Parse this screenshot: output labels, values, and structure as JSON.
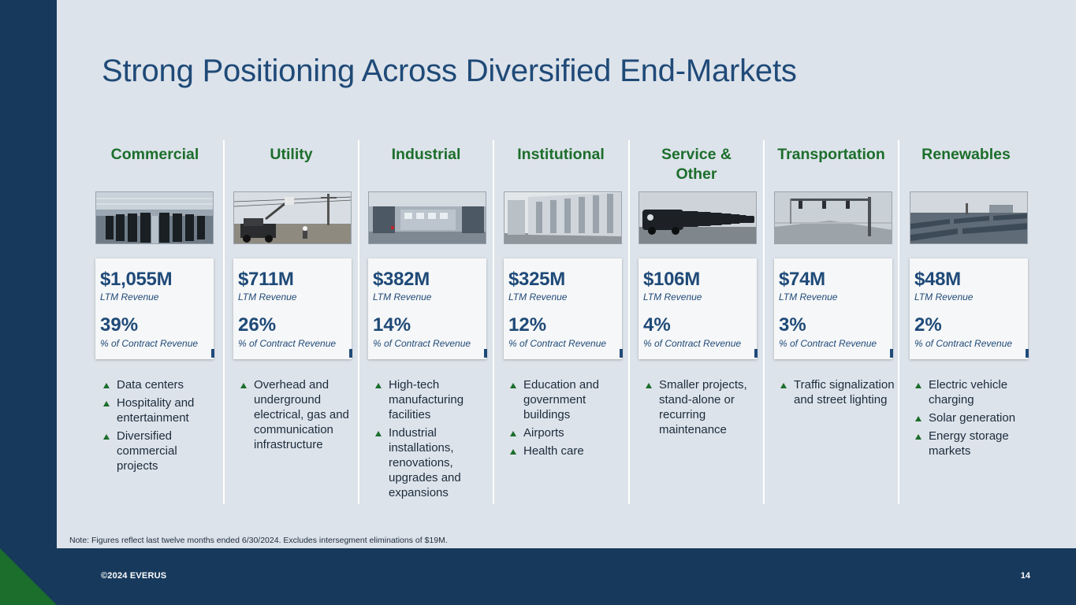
{
  "title": "Strong Positioning Across Diversified End-Markets",
  "note": "Note: Figures reflect last twelve months ended 6/30/2024. Excludes intersegment eliminations of $19M.",
  "footer": {
    "copyright": "©2024 EVERUS",
    "page_number": "14"
  },
  "colors": {
    "navy": "#17395c",
    "title_blue": "#1f4a78",
    "green": "#1c6e2c",
    "background": "#dde3ea"
  },
  "segments": [
    {
      "name": "Commercial",
      "revenue": "$1,055M",
      "revenue_label": "LTM Revenue",
      "percent": "39%",
      "percent_label": "% of Contract Revenue",
      "photo": "data-center-photo",
      "bullets": [
        "Data centers",
        "Hospitality and entertainment",
        "Diversified commercial projects"
      ]
    },
    {
      "name": "Utility",
      "revenue": "$711M",
      "revenue_label": "LTM Revenue",
      "percent": "26%",
      "percent_label": "% of Contract Revenue",
      "photo": "utility-lineworkers-photo",
      "bullets": [
        "Overhead and underground electrical, gas and communication infrastructure"
      ]
    },
    {
      "name": "Industrial",
      "revenue": "$382M",
      "revenue_label": "LTM Revenue",
      "percent": "14%",
      "percent_label": "% of Contract Revenue",
      "photo": "industrial-facility-photo",
      "bullets": [
        "High-tech manufacturing facilities",
        "Industrial installations, renovations, upgrades and expansions"
      ]
    },
    {
      "name": "Institutional",
      "revenue": "$325M",
      "revenue_label": "LTM Revenue",
      "percent": "12%",
      "percent_label": "% of Contract Revenue",
      "photo": "institutional-building-photo",
      "bullets": [
        "Education and government buildings",
        "Airports",
        "Health care"
      ]
    },
    {
      "name": "Service & Other",
      "revenue": "$106M",
      "revenue_label": "LTM Revenue",
      "percent": "4%",
      "percent_label": "% of Contract Revenue",
      "photo": "service-vans-photo",
      "bullets": [
        "Smaller projects, stand-alone or recurring maintenance"
      ]
    },
    {
      "name": "Transportation",
      "revenue": "$74M",
      "revenue_label": "LTM Revenue",
      "percent": "3%",
      "percent_label": "% of Contract Revenue",
      "photo": "traffic-signal-photo",
      "bullets": [
        "Traffic signalization and street lighting"
      ]
    },
    {
      "name": "Renewables",
      "revenue": "$48M",
      "revenue_label": "LTM Revenue",
      "percent": "2%",
      "percent_label": "% of Contract Revenue",
      "photo": "solar-field-photo",
      "bullets": [
        "Electric vehicle charging",
        "Solar generation",
        "Energy storage markets"
      ]
    }
  ]
}
